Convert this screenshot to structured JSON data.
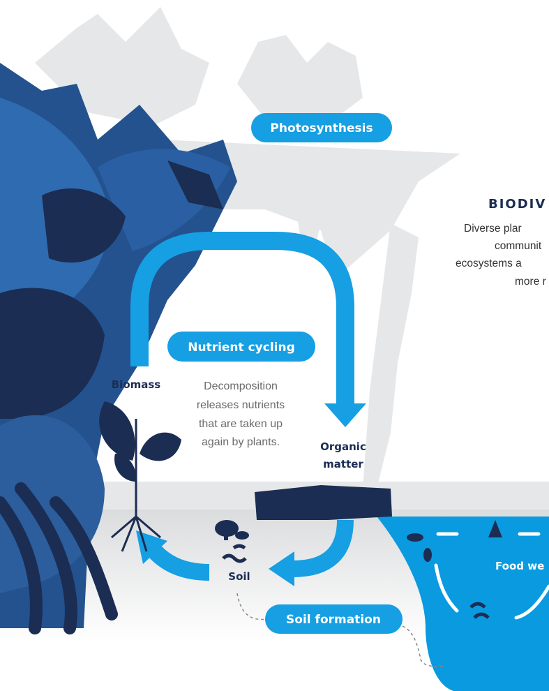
{
  "labels": {
    "photosynthesis": "Photosynthesis",
    "nutrient_cycling": "Nutrient cycling",
    "biomass": "Biomass",
    "organic_matter": [
      "Organic",
      "matter"
    ],
    "soil": "Soil",
    "soil_formation": "Soil formation",
    "food_web": "Food we"
  },
  "decomposition_note": [
    "Decomposition",
    "releases nutrients",
    "that are taken up",
    "again by plants."
  ],
  "biodiversity": {
    "title": "BIODIV",
    "text": [
      "Diverse plar",
      "communit",
      "ecosystems a",
      "more r"
    ]
  }
}
